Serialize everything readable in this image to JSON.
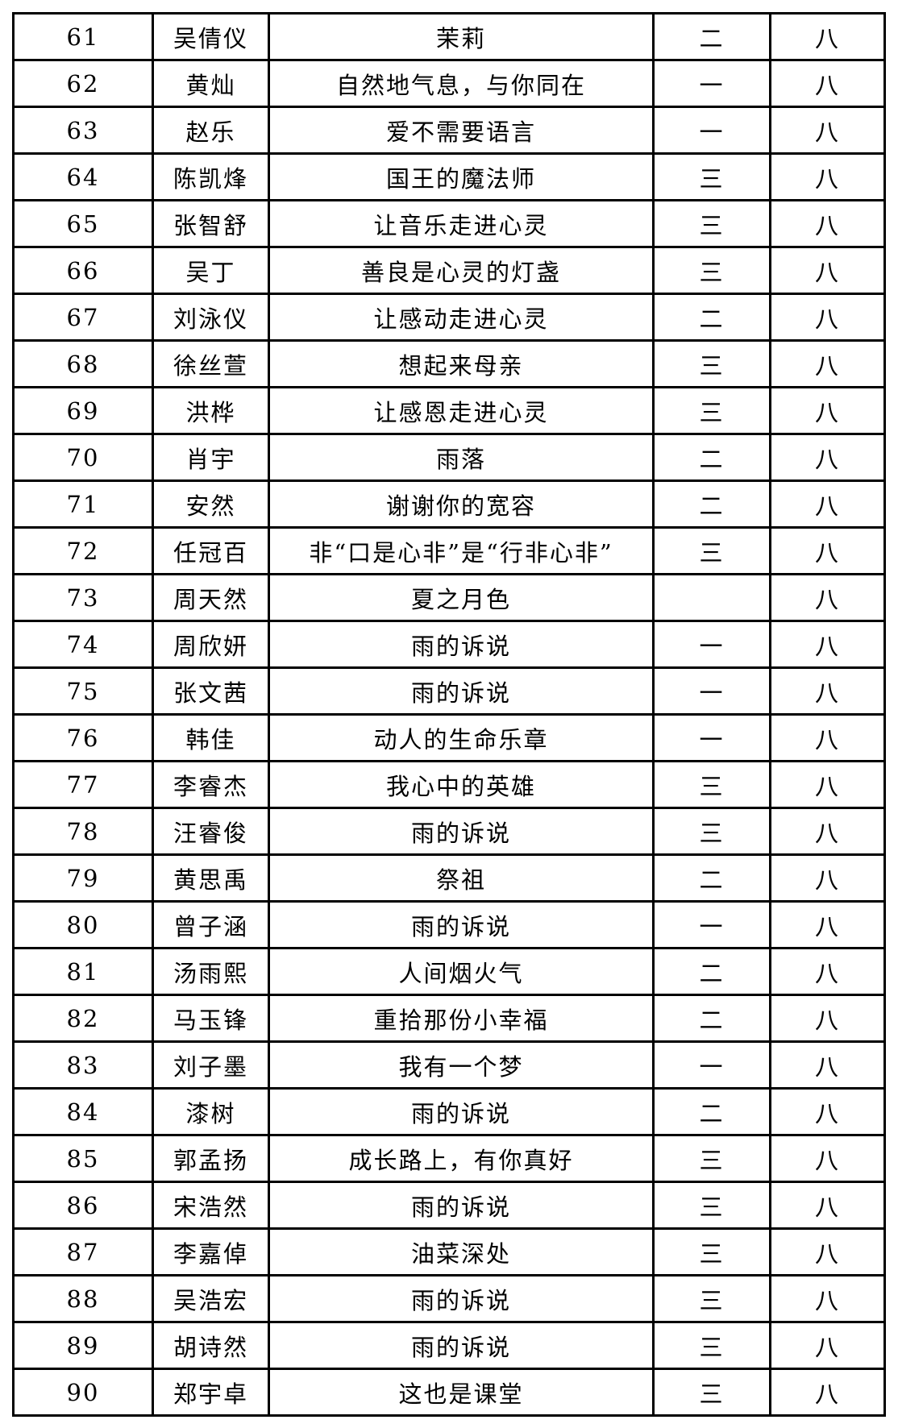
{
  "colors": {
    "background": "#ffffff",
    "border": "#000000",
    "text": "#000000"
  },
  "table": {
    "rows": [
      [
        "61",
        "吴倩仪",
        "茉莉",
        "二",
        "八"
      ],
      [
        "62",
        "黄灿",
        "自然地气息，与你同在",
        "一",
        "八"
      ],
      [
        "63",
        "赵乐",
        "爱不需要语言",
        "一",
        "八"
      ],
      [
        "64",
        "陈凯烽",
        "国王的魔法师",
        "三",
        "八"
      ],
      [
        "65",
        "张智舒",
        "让音乐走进心灵",
        "三",
        "八"
      ],
      [
        "66",
        "吴丁",
        "善良是心灵的灯盏",
        "三",
        "八"
      ],
      [
        "67",
        "刘泳仪",
        "让感动走进心灵",
        "二",
        "八"
      ],
      [
        "68",
        "徐丝萱",
        "想起来母亲",
        "三",
        "八"
      ],
      [
        "69",
        "洪桦",
        "让感恩走进心灵",
        "三",
        "八"
      ],
      [
        "70",
        "肖宇",
        "雨落",
        "二",
        "八"
      ],
      [
        "71",
        "安然",
        "谢谢你的宽容",
        "二",
        "八"
      ],
      [
        "72",
        "任冠百",
        "非“口是心非”是“行非心非”",
        "三",
        "八"
      ],
      [
        "73",
        "周天然",
        "夏之月色",
        "",
        "八"
      ],
      [
        "74",
        "周欣妍",
        "雨的诉说",
        "一",
        "八"
      ],
      [
        "75",
        "张文茜",
        "雨的诉说",
        "一",
        "八"
      ],
      [
        "76",
        "韩佳",
        "动人的生命乐章",
        "一",
        "八"
      ],
      [
        "77",
        "李睿杰",
        "我心中的英雄",
        "三",
        "八"
      ],
      [
        "78",
        "汪睿俊",
        "雨的诉说",
        "三",
        "八"
      ],
      [
        "79",
        "黄思禹",
        "祭祖",
        "二",
        "八"
      ],
      [
        "80",
        "曾子涵",
        "雨的诉说",
        "一",
        "八"
      ],
      [
        "81",
        "汤雨熙",
        "人间烟火气",
        "二",
        "八"
      ],
      [
        "82",
        "马玉锋",
        "重拾那份小幸福",
        "二",
        "八"
      ],
      [
        "83",
        "刘子墨",
        "我有一个梦",
        "一",
        "八"
      ],
      [
        "84",
        "漆树",
        "雨的诉说",
        "二",
        "八"
      ],
      [
        "85",
        "郭孟扬",
        "成长路上，有你真好",
        "三",
        "八"
      ],
      [
        "86",
        "宋浩然",
        "雨的诉说",
        "三",
        "八"
      ],
      [
        "87",
        "李嘉倬",
        "油菜深处",
        "三",
        "八"
      ],
      [
        "88",
        "吴浩宏",
        "雨的诉说",
        "三",
        "八"
      ],
      [
        "89",
        "胡诗然",
        "雨的诉说",
        "三",
        "八"
      ],
      [
        "90",
        "郑宇卓",
        "这也是课堂",
        "三",
        "八"
      ]
    ]
  }
}
